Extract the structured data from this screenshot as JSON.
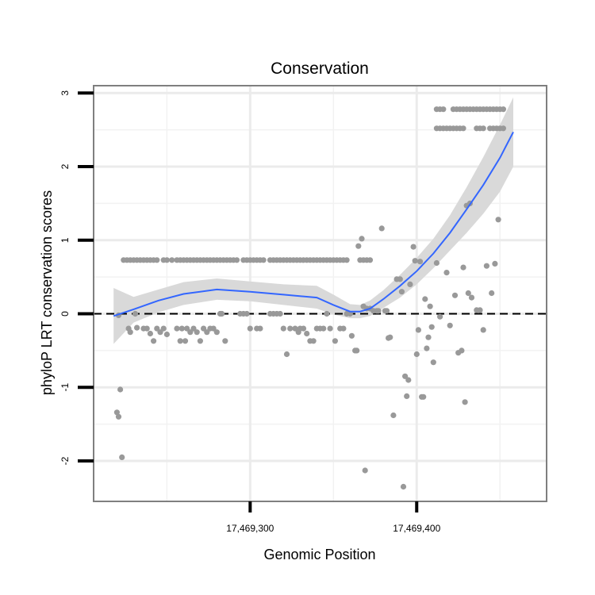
{
  "chart_data": {
    "type": "scatter",
    "title": "Conservation",
    "xlabel": "Genomic Position",
    "ylabel": "phyloP LRT conservation scores",
    "xlim": [
      17469206,
      17469478
    ],
    "ylim": [
      -2.55,
      3.1
    ],
    "x_ticks": [
      {
        "value": 17469300,
        "label": "17,469,300"
      },
      {
        "value": 17469400,
        "label": "17,469,400"
      }
    ],
    "y_ticks": [
      {
        "value": -2,
        "label": "-2"
      },
      {
        "value": -1,
        "label": "-1"
      },
      {
        "value": 0,
        "label": "0"
      },
      {
        "value": 1,
        "label": "1"
      },
      {
        "value": 2,
        "label": "2"
      },
      {
        "value": 3,
        "label": "3"
      }
    ],
    "minor_gridlines_x": [
      17469250,
      17469350,
      17469450
    ],
    "minor_gridlines_y": [
      -1.5,
      -0.5,
      0.5,
      1.5,
      2.5
    ],
    "reference_line": {
      "y": 0,
      "style": "dashed",
      "color": "#000000"
    },
    "grid": true,
    "legend": "none",
    "colors": {
      "points": "#999999",
      "smooth": "#3366ff",
      "ribbon": "#d9d9d9",
      "panel_border": "#7f7f7f"
    },
    "series": [
      {
        "kind": "points",
        "points": [
          [
            17469220,
            -1.34
          ],
          [
            17469221,
            -1.4
          ],
          [
            17469222,
            -1.03
          ],
          [
            17469223,
            -1.95
          ],
          [
            17469224,
            0.73
          ],
          [
            17469226,
            0.73
          ],
          [
            17469228,
            0.73
          ],
          [
            17469230,
            0.73
          ],
          [
            17469232,
            0.73
          ],
          [
            17469234,
            0.73
          ],
          [
            17469236,
            0.73
          ],
          [
            17469238,
            0.73
          ],
          [
            17469240,
            0.73
          ],
          [
            17469242,
            0.73
          ],
          [
            17469244,
            0.73
          ],
          [
            17469248,
            0.73
          ],
          [
            17469250,
            0.73
          ],
          [
            17469253,
            0.73
          ],
          [
            17469256,
            0.73
          ],
          [
            17469258,
            0.73
          ],
          [
            17469260,
            0.73
          ],
          [
            17469262,
            0.73
          ],
          [
            17469264,
            0.73
          ],
          [
            17469266,
            0.73
          ],
          [
            17469268,
            0.73
          ],
          [
            17469270,
            0.73
          ],
          [
            17469272,
            0.73
          ],
          [
            17469274,
            0.73
          ],
          [
            17469276,
            0.73
          ],
          [
            17469278,
            0.73
          ],
          [
            17469280,
            0.73
          ],
          [
            17469282,
            0.73
          ],
          [
            17469284,
            0.73
          ],
          [
            17469286,
            0.73
          ],
          [
            17469288,
            0.73
          ],
          [
            17469290,
            0.73
          ],
          [
            17469292,
            0.73
          ],
          [
            17469296,
            0.73
          ],
          [
            17469298,
            0.73
          ],
          [
            17469300,
            0.73
          ],
          [
            17469302,
            0.73
          ],
          [
            17469304,
            0.73
          ],
          [
            17469306,
            0.73
          ],
          [
            17469308,
            0.73
          ],
          [
            17469312,
            0.73
          ],
          [
            17469314,
            0.73
          ],
          [
            17469316,
            0.73
          ],
          [
            17469318,
            0.73
          ],
          [
            17469320,
            0.73
          ],
          [
            17469322,
            0.73
          ],
          [
            17469324,
            0.73
          ],
          [
            17469326,
            0.73
          ],
          [
            17469328,
            0.73
          ],
          [
            17469330,
            0.73
          ],
          [
            17469332,
            0.73
          ],
          [
            17469334,
            0.73
          ],
          [
            17469336,
            0.73
          ],
          [
            17469338,
            0.73
          ],
          [
            17469340,
            0.73
          ],
          [
            17469342,
            0.73
          ],
          [
            17469344,
            0.73
          ],
          [
            17469346,
            0.73
          ],
          [
            17469348,
            0.73
          ],
          [
            17469350,
            0.73
          ],
          [
            17469352,
            0.73
          ],
          [
            17469354,
            0.73
          ],
          [
            17469356,
            0.73
          ],
          [
            17469358,
            0.73
          ],
          [
            17469366,
            0.73
          ],
          [
            17469368,
            0.73
          ],
          [
            17469370,
            0.73
          ],
          [
            17469372,
            0.73
          ],
          [
            17469221,
            -0.02
          ],
          [
            17469227,
            -0.2
          ],
          [
            17469228,
            -0.25
          ],
          [
            17469231,
            0.0
          ],
          [
            17469232,
            -0.19
          ],
          [
            17469236,
            -0.2
          ],
          [
            17469238,
            -0.2
          ],
          [
            17469240,
            -0.27
          ],
          [
            17469242,
            -0.37
          ],
          [
            17469244,
            -0.2
          ],
          [
            17469246,
            -0.25
          ],
          [
            17469248,
            -0.2
          ],
          [
            17469250,
            -0.28
          ],
          [
            17469256,
            -0.2
          ],
          [
            17469258,
            -0.37
          ],
          [
            17469259,
            -0.2
          ],
          [
            17469261,
            -0.37
          ],
          [
            17469262,
            -0.2
          ],
          [
            17469264,
            -0.25
          ],
          [
            17469266,
            -0.2
          ],
          [
            17469268,
            -0.25
          ],
          [
            17469270,
            -0.37
          ],
          [
            17469272,
            -0.2
          ],
          [
            17469274,
            -0.25
          ],
          [
            17469276,
            -0.2
          ],
          [
            17469278,
            -0.2
          ],
          [
            17469280,
            -0.25
          ],
          [
            17469282,
            0.0
          ],
          [
            17469283,
            0.0
          ],
          [
            17469285,
            -0.37
          ],
          [
            17469294,
            0.0
          ],
          [
            17469296,
            0.0
          ],
          [
            17469298,
            0.0
          ],
          [
            17469300,
            -0.2
          ],
          [
            17469304,
            -0.2
          ],
          [
            17469306,
            -0.2
          ],
          [
            17469312,
            0.0
          ],
          [
            17469314,
            0.0
          ],
          [
            17469316,
            0.0
          ],
          [
            17469318,
            0.0
          ],
          [
            17469320,
            -0.2
          ],
          [
            17469322,
            -0.55
          ],
          [
            17469324,
            -0.2
          ],
          [
            17469327,
            -0.2
          ],
          [
            17469329,
            -0.25
          ],
          [
            17469330,
            -0.2
          ],
          [
            17469332,
            -0.2
          ],
          [
            17469334,
            -0.27
          ],
          [
            17469336,
            -0.37
          ],
          [
            17469338,
            -0.37
          ],
          [
            17469340,
            -0.2
          ],
          [
            17469342,
            -0.2
          ],
          [
            17469344,
            -0.2
          ],
          [
            17469346,
            0.0
          ],
          [
            17469348,
            -0.2
          ],
          [
            17469351,
            -0.37
          ],
          [
            17469354,
            -0.2
          ],
          [
            17469356,
            -0.2
          ],
          [
            17469358,
            0.0
          ],
          [
            17469360,
            0.0
          ],
          [
            17469361,
            -0.3
          ],
          [
            17469363,
            -0.5
          ],
          [
            17469364,
            -0.5
          ],
          [
            17469365,
            0.92
          ],
          [
            17469367,
            1.02
          ],
          [
            17469368,
            0.1
          ],
          [
            17469369,
            -2.13
          ],
          [
            17469370,
            0.07
          ],
          [
            17469372,
            0.07
          ],
          [
            17469374,
            0.04
          ],
          [
            17469376,
            0.04
          ],
          [
            17469377,
            0.04
          ],
          [
            17469379,
            1.16
          ],
          [
            17469381,
            0.04
          ],
          [
            17469382,
            0.04
          ],
          [
            17469383,
            -0.33
          ],
          [
            17469384,
            -0.32
          ],
          [
            17469386,
            -1.38
          ],
          [
            17469388,
            0.47
          ],
          [
            17469390,
            0.47
          ],
          [
            17469391,
            0.3
          ],
          [
            17469392,
            -2.35
          ],
          [
            17469393,
            -0.85
          ],
          [
            17469394,
            -1.12
          ],
          [
            17469395,
            -0.9
          ],
          [
            17469396,
            0.4
          ],
          [
            17469398,
            0.91
          ],
          [
            17469399,
            0.72
          ],
          [
            17469400,
            -0.55
          ],
          [
            17469401,
            -0.22
          ],
          [
            17469402,
            0.71
          ],
          [
            17469403,
            -1.13
          ],
          [
            17469404,
            -1.13
          ],
          [
            17469405,
            0.2
          ],
          [
            17469406,
            -0.47
          ],
          [
            17469407,
            -0.32
          ],
          [
            17469408,
            0.1
          ],
          [
            17469409,
            -0.18
          ],
          [
            17469410,
            -0.66
          ],
          [
            17469412,
            2.78
          ],
          [
            17469414,
            2.78
          ],
          [
            17469416,
            2.78
          ],
          [
            17469412,
            2.52
          ],
          [
            17469414,
            2.52
          ],
          [
            17469416,
            2.52
          ],
          [
            17469418,
            2.52
          ],
          [
            17469420,
            2.52
          ],
          [
            17469422,
            2.52
          ],
          [
            17469424,
            2.52
          ],
          [
            17469426,
            2.52
          ],
          [
            17469428,
            2.52
          ],
          [
            17469412,
            0.69
          ],
          [
            17469414,
            -0.04
          ],
          [
            17469418,
            0.56
          ],
          [
            17469420,
            -0.16
          ],
          [
            17469423,
            0.25
          ],
          [
            17469425,
            -0.53
          ],
          [
            17469427,
            -0.5
          ],
          [
            17469428,
            0.63
          ],
          [
            17469429,
            -1.2
          ],
          [
            17469430,
            1.47
          ],
          [
            17469431,
            0.28
          ],
          [
            17469432,
            1.5
          ],
          [
            17469433,
            0.22
          ],
          [
            17469436,
            0.05
          ],
          [
            17469438,
            0.05
          ],
          [
            17469440,
            -0.22
          ],
          [
            17469442,
            0.65
          ],
          [
            17469445,
            0.28
          ],
          [
            17469447,
            0.68
          ],
          [
            17469449,
            1.28
          ],
          [
            17469422,
            2.78
          ],
          [
            17469424,
            2.78
          ],
          [
            17469426,
            2.78
          ],
          [
            17469428,
            2.78
          ],
          [
            17469430,
            2.78
          ],
          [
            17469432,
            2.78
          ],
          [
            17469434,
            2.78
          ],
          [
            17469436,
            2.78
          ],
          [
            17469438,
            2.78
          ],
          [
            17469440,
            2.78
          ],
          [
            17469442,
            2.78
          ],
          [
            17469444,
            2.78
          ],
          [
            17469446,
            2.78
          ],
          [
            17469448,
            2.78
          ],
          [
            17469450,
            2.78
          ],
          [
            17469452,
            2.78
          ],
          [
            17469436,
            2.52
          ],
          [
            17469438,
            2.52
          ],
          [
            17469440,
            2.52
          ],
          [
            17469444,
            2.52
          ],
          [
            17469446,
            2.52
          ],
          [
            17469448,
            2.52
          ],
          [
            17469450,
            2.52
          ],
          [
            17469452,
            2.52
          ]
        ]
      },
      {
        "kind": "smooth",
        "x": [
          17469218,
          17469230,
          17469245,
          17469260,
          17469280,
          17469300,
          17469320,
          17469340,
          17469350,
          17469360,
          17469366,
          17469372,
          17469380,
          17469390,
          17469400,
          17469410,
          17469420,
          17469430,
          17469440,
          17469450,
          17469458
        ],
        "y": [
          -0.03,
          0.06,
          0.18,
          0.27,
          0.33,
          0.3,
          0.26,
          0.22,
          0.12,
          0.03,
          0.03,
          0.07,
          0.2,
          0.38,
          0.58,
          0.82,
          1.1,
          1.42,
          1.75,
          2.12,
          2.47
        ],
        "lower": [
          -0.41,
          -0.12,
          0.02,
          0.12,
          0.19,
          0.17,
          0.12,
          0.07,
          -0.01,
          -0.06,
          -0.06,
          -0.03,
          0.08,
          0.22,
          0.4,
          0.62,
          0.86,
          1.1,
          1.36,
          1.66,
          2.0
        ],
        "upper": [
          0.35,
          0.23,
          0.33,
          0.43,
          0.48,
          0.44,
          0.4,
          0.38,
          0.26,
          0.13,
          0.12,
          0.18,
          0.32,
          0.53,
          0.76,
          1.02,
          1.34,
          1.72,
          2.13,
          2.57,
          2.94
        ]
      }
    ]
  }
}
